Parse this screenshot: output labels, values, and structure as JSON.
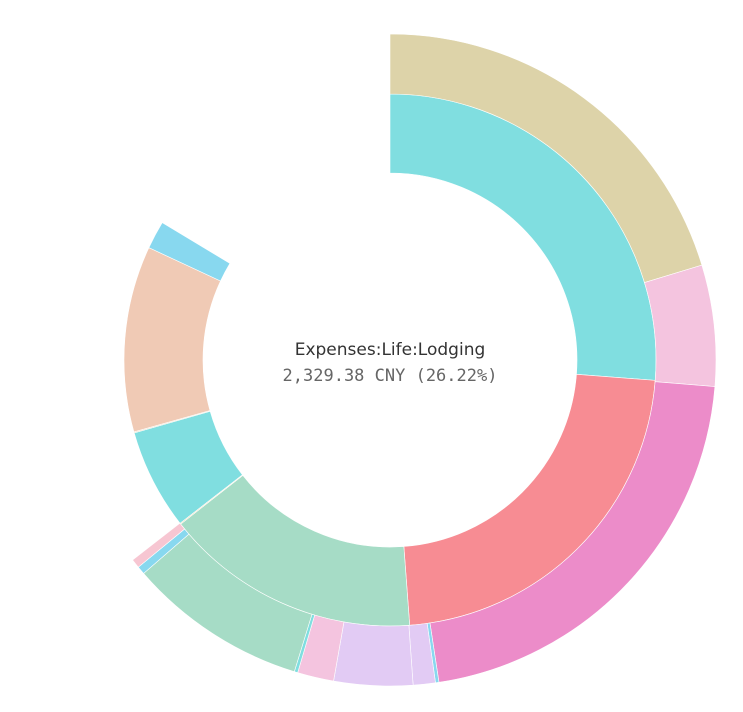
{
  "center": {
    "label": "Expenses:Life:Lodging",
    "value": "2,329.38 CNY (26.22%)"
  },
  "chart_data": {
    "type": "sunburst",
    "title": "",
    "unit": "CNY",
    "start_angle_deg": 0,
    "direction": "clockwise",
    "inner_ring": [
      {
        "value": 2329.38,
        "percent": 26.22,
        "color": "#80dee0"
      },
      {
        "value": 2010,
        "percent": 22.6,
        "color": "#f78c93"
      },
      {
        "value": 1390,
        "percent": 15.6,
        "color": "#a6dcc6"
      },
      {
        "value": 5,
        "percent": 0.06,
        "color": "#ead29a"
      },
      {
        "value": 540,
        "percent": 6.1,
        "color": "#80dee0"
      },
      {
        "value": 5,
        "percent": 0.06,
        "color": "#dfcba1"
      },
      {
        "value": 1000,
        "percent": 11.3,
        "color": "#f0cab5"
      },
      {
        "value": 149,
        "percent": 1.7,
        "color": "#88d8ef"
      }
    ],
    "outer_ring": [
      {
        "value": 1800,
        "percent": 20.3,
        "color": "#ddd3a9"
      },
      {
        "value": 530,
        "percent": 6.0,
        "color": "#f4c4df"
      },
      {
        "value": 1895,
        "percent": 21.3,
        "color": "#ec8cc9"
      },
      {
        "value": 15,
        "percent": 0.17,
        "color": "#88d8ef"
      },
      {
        "value": 100,
        "percent": 1.1,
        "color": "#e2cbf4"
      },
      {
        "value": 350,
        "percent": 3.9,
        "color": "#e2cbf4"
      },
      {
        "value": 160,
        "percent": 1.8,
        "color": "#f4c4df"
      },
      {
        "value": 15,
        "percent": 0.17,
        "color": "#80dee0"
      },
      {
        "value": 790,
        "percent": 8.9,
        "color": "#a6dcc6"
      },
      {
        "value": 35,
        "percent": 0.4,
        "color": "#88d8ef"
      },
      {
        "value": 40,
        "percent": 0.45,
        "color": "#f7c6d2"
      }
    ]
  }
}
